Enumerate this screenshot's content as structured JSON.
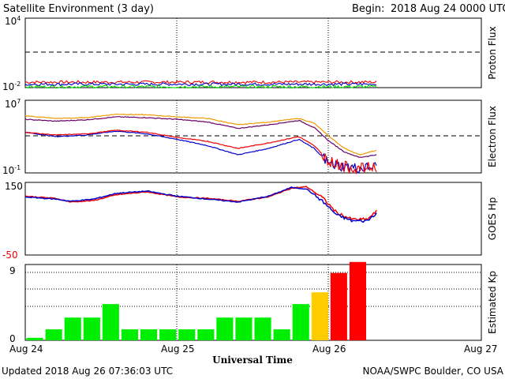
{
  "header": {
    "title": "Satellite Environment (3 day)",
    "begin_label": "Begin:",
    "begin_value": "2018 Aug 24 0000 UTC"
  },
  "footer": {
    "updated": "Updated 2018 Aug 26 07:36:03 UTC",
    "credit": "NOAA/SWPC Boulder, CO USA"
  },
  "x_axis": {
    "title": "Universal Time",
    "ticks": [
      "Aug 24",
      "Aug 25",
      "Aug 26",
      "Aug 27"
    ],
    "range_days": [
      0,
      3
    ],
    "data_end_day": 2.31
  },
  "panels": {
    "proton": {
      "ylabel": "Proton Flux",
      "ytick_top_base": "10",
      "ytick_top_exp": "4",
      "ytick_bottom_base": "10",
      "ytick_bottom_exp": "-2"
    },
    "electron": {
      "ylabel": "Electron Flux",
      "ytick_top_base": "10",
      "ytick_top_exp": "7",
      "ytick_bottom_base": "10",
      "ytick_bottom_exp": "-1"
    },
    "hp": {
      "ylabel": "GOES Hp",
      "ytick_top": "150",
      "ytick_bottom": "-50"
    },
    "kp": {
      "ylabel": "Estimated Kp",
      "ytick_top": "9",
      "ytick_bottom": "0"
    }
  },
  "colors": {
    "kp_green": "#00ee00",
    "kp_yellow": "#ffcc00",
    "kp_red": "#ff0000",
    "red": "#ee0000",
    "blue": "#0000cc",
    "green": "#00dd00",
    "orange": "#ee9900",
    "purple": "#660066"
  },
  "chart_data": [
    {
      "type": "line",
      "name": "Proton Flux",
      "yscale": "log",
      "ylim": [
        0.01,
        10000
      ],
      "threshold": 10,
      "x_unit": "days since Aug 24 0000 UTC",
      "x": [
        0,
        2.31
      ],
      "series": [
        {
          "values": [
            0.03,
            0.03
          ]
        },
        {
          "values": [
            0.02,
            0.02
          ]
        },
        {
          "values": [
            0.012,
            0.012
          ]
        }
      ]
    },
    {
      "type": "line",
      "name": "Electron Flux",
      "yscale": "log",
      "ylim": [
        0.1,
        10000000
      ],
      "threshold": 1000,
      "x": [
        0,
        0.2,
        0.4,
        0.6,
        0.8,
        1.0,
        1.2,
        1.4,
        1.6,
        1.8,
        1.9,
        2.0,
        2.1,
        2.2,
        2.31
      ],
      "series": [
        {
          "values": [
            200000,
            100000,
            120000,
            300000,
            250000,
            150000,
            100000,
            20000,
            40000,
            100000,
            30000,
            1000,
            50,
            10,
            30
          ]
        },
        {
          "values": [
            80000,
            50000,
            70000,
            150000,
            120000,
            80000,
            40000,
            8000,
            20000,
            60000,
            10000,
            300,
            20,
            5,
            10
          ]
        },
        {
          "values": [
            3000,
            1000,
            1500,
            4000,
            2000,
            500,
            100,
            10,
            50,
            500,
            50,
            1,
            0.5,
            0.3,
            0.5
          ]
        },
        {
          "values": [
            3000,
            1500,
            2000,
            5000,
            3000,
            800,
            300,
            50,
            200,
            1000,
            100,
            2,
            0.5,
            0.3,
            0.5
          ]
        }
      ]
    },
    {
      "type": "line",
      "name": "GOES Hp",
      "ylim": [
        -50,
        150
      ],
      "x": [
        0,
        0.2,
        0.3,
        0.45,
        0.6,
        0.8,
        1.0,
        1.2,
        1.4,
        1.6,
        1.75,
        1.85,
        1.95,
        2.05,
        2.15,
        2.25,
        2.31
      ],
      "series": [
        {
          "values": [
            112,
            106,
            96,
            100,
            116,
            124,
            110,
            106,
            98,
            110,
            134,
            138,
            110,
            66,
            48,
            48,
            70
          ]
        },
        {
          "values": [
            110,
            104,
            98,
            104,
            120,
            126,
            112,
            104,
            96,
            112,
            136,
            132,
            100,
            60,
            44,
            44,
            66
          ]
        }
      ]
    },
    {
      "type": "bar",
      "name": "Estimated Kp",
      "ylim": [
        0,
        9
      ],
      "bar_width_days": 0.125,
      "values": [
        0.3,
        1.3,
        2.7,
        2.7,
        4.3,
        1.3,
        1.3,
        1.3,
        1.3,
        1.3,
        2.7,
        2.7,
        2.7,
        1.3,
        4.3,
        5.7,
        8.0,
        9.3
      ]
    }
  ]
}
